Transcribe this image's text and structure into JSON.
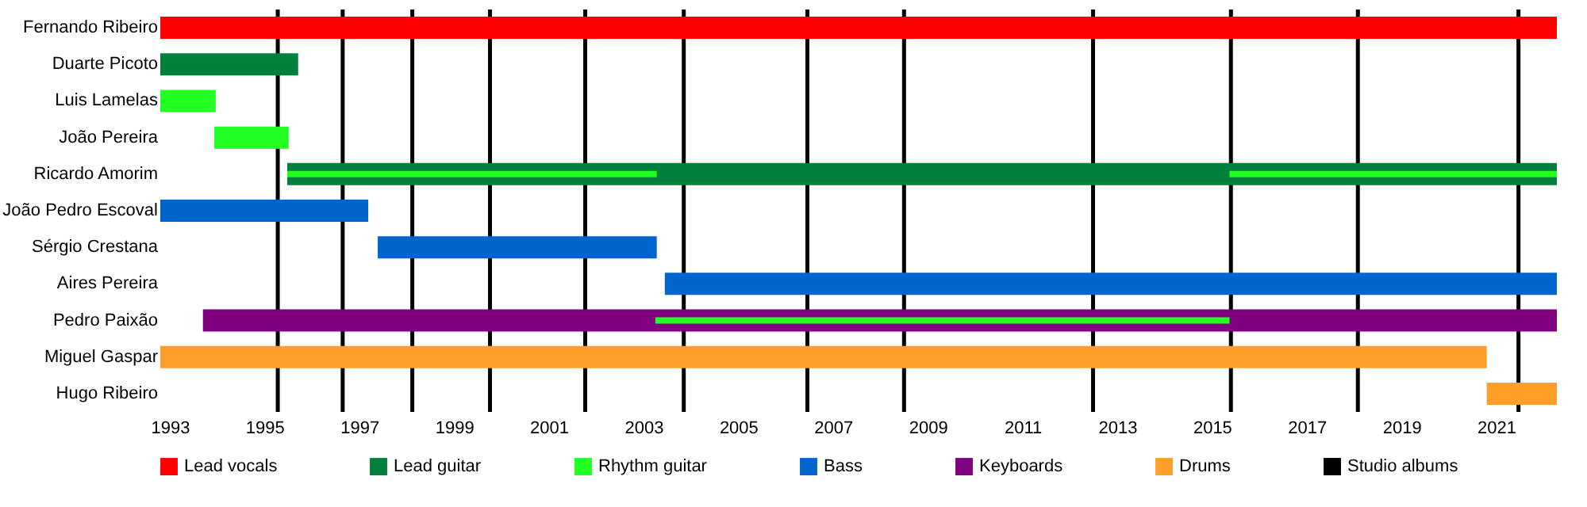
{
  "chart_data": {
    "type": "bar",
    "orientation": "horizontal",
    "categories": [
      "Fernando Ribeiro",
      "Duarte Picoto",
      "Luis Lamelas",
      "João Pereira",
      "Ricardo Amorim",
      "João Pedro Escoval",
      "Sérgio Crestana",
      "Aires Pereira",
      "Pedro Paixão",
      "Miguel Gaspar",
      "Hugo Ribeiro"
    ],
    "series": [
      {
        "name": "Lead vocals",
        "color": "#ff0000",
        "base": [
          1992.8,
          null,
          null,
          null,
          null,
          null,
          null,
          null,
          null,
          null,
          null
        ],
        "values": [
          29.48,
          null,
          null,
          null,
          null,
          null,
          null,
          null,
          null,
          null,
          null
        ]
      },
      {
        "name": "Lead guitar",
        "color": "#00803a",
        "base": [
          null,
          1992.8,
          null,
          null,
          1995.48,
          null,
          null,
          null,
          null,
          null,
          null
        ],
        "values": [
          null,
          2.91,
          null,
          null,
          26.8,
          null,
          null,
          null,
          null,
          null,
          null
        ]
      },
      {
        "name": "Rhythm guitar",
        "color": "#22ff22",
        "base": [
          null,
          null,
          1992.8,
          1993.94,
          1995.48,
          null,
          null,
          null,
          2003.25,
          null,
          null
        ],
        "values": [
          null,
          null,
          1.17,
          1.57,
          7.8,
          null,
          null,
          null,
          12.12,
          null,
          null
        ]
      },
      {
        "color": "#22ff22",
        "base": [
          null,
          null,
          null,
          null,
          2015.37,
          null,
          null,
          null,
          null,
          null,
          null
        ],
        "values": [
          null,
          null,
          null,
          null,
          6.91,
          null,
          null,
          null,
          null,
          null,
          null
        ]
      },
      {
        "name": "Bass",
        "color": "#0066cc",
        "base": [
          null,
          null,
          null,
          null,
          null,
          1992.8,
          1997.39,
          2003.45,
          null,
          null,
          null
        ],
        "values": [
          null,
          null,
          null,
          null,
          null,
          4.39,
          5.89,
          18.83,
          null,
          null,
          null
        ]
      },
      {
        "name": "Keyboards",
        "color": "#800080",
        "base": [
          null,
          null,
          null,
          null,
          null,
          null,
          null,
          null,
          1993.7,
          null,
          null
        ],
        "values": [
          null,
          null,
          null,
          null,
          null,
          null,
          null,
          null,
          28.58,
          null,
          null
        ]
      },
      {
        "name": "Drums",
        "color": "#ff9f2a",
        "base": [
          null,
          null,
          null,
          null,
          null,
          null,
          null,
          null,
          null,
          1992.8,
          2020.8
        ],
        "values": [
          null,
          null,
          null,
          null,
          null,
          null,
          null,
          null,
          null,
          28.0,
          1.48
        ]
      }
    ],
    "xlim": [
      1992.8,
      2022.28
    ],
    "xticks": [
      1993,
      1995,
      1997,
      1999,
      2001,
      2003,
      2005,
      2007,
      2009,
      2011,
      2013,
      2015,
      2017,
      2019,
      2021
    ],
    "ref_lines": [
      {
        "axis": "x",
        "value": 1995.28,
        "label": "Studio albums",
        "color": "#000000"
      },
      {
        "axis": "x",
        "value": 1996.65,
        "color": "#000000"
      },
      {
        "axis": "x",
        "value": 1998.12,
        "color": "#000000"
      },
      {
        "axis": "x",
        "value": 1999.76,
        "color": "#000000"
      },
      {
        "axis": "x",
        "value": 2001.77,
        "color": "#000000"
      },
      {
        "axis": "x",
        "value": 2003.85,
        "color": "#000000"
      },
      {
        "axis": "x",
        "value": 2006.46,
        "color": "#000000"
      },
      {
        "axis": "x",
        "value": 2008.5,
        "color": "#000000"
      },
      {
        "axis": "x",
        "value": 2012.49,
        "color": "#000000"
      },
      {
        "axis": "x",
        "value": 2015.4,
        "color": "#000000"
      },
      {
        "axis": "x",
        "value": 2018.08,
        "color": "#000000"
      },
      {
        "axis": "x",
        "value": 2021.47,
        "color": "#000000"
      }
    ],
    "legend": "bottom"
  }
}
